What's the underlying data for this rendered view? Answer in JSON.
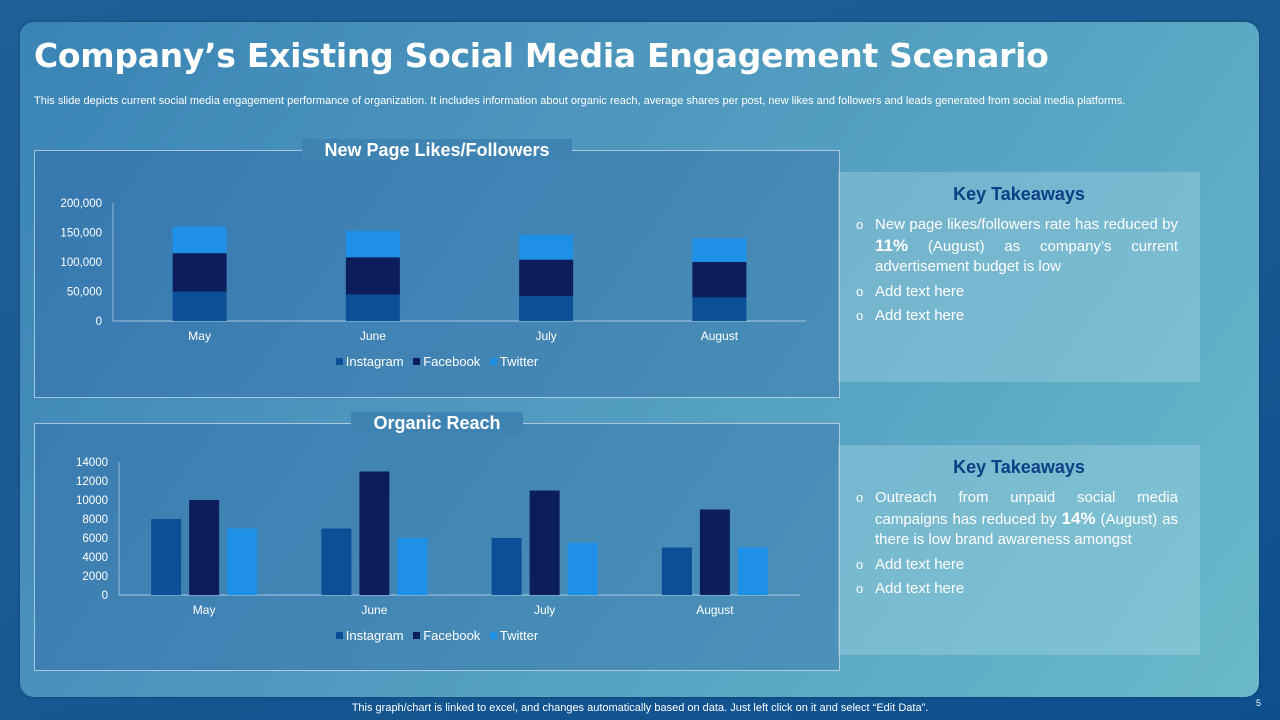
{
  "slide": {
    "title": "Company’s Existing Social Media Engagement Scenario",
    "subtitle": "This slide depicts current social media engagement performance of organization. It includes information about organic reach, average shares per post, new likes and followers and leads generated from social media platforms.",
    "footer_note": "This graph/chart is linked to excel, and changes automatically based on data. Just left click on it and select “Edit Data”.",
    "page_number": "5"
  },
  "colors": {
    "instagram": "#0b4f97",
    "facebook": "#0b1e5b",
    "twitter": "#1e90e8",
    "takeaway_title": "#0c3f84"
  },
  "chart_data": [
    {
      "type": "bar",
      "stacked": true,
      "title": "New Page Likes/Followers",
      "categories": [
        "May",
        "June",
        "July",
        "August"
      ],
      "series": [
        {
          "name": "Instagram",
          "values": [
            50000,
            45000,
            42000,
            40000
          ]
        },
        {
          "name": "Facebook",
          "values": [
            65000,
            63000,
            62000,
            60000
          ]
        },
        {
          "name": "Twitter",
          "values": [
            45000,
            45000,
            42000,
            40000
          ]
        }
      ],
      "ylim": [
        0,
        200000
      ],
      "yticks": [
        0,
        50000,
        100000,
        150000,
        200000
      ],
      "ytick_labels": [
        "0",
        "50,000",
        "100,000",
        "150,000",
        "200,000"
      ],
      "xlabel": "",
      "ylabel": "",
      "legend": "bottom"
    },
    {
      "type": "bar",
      "stacked": false,
      "title": "Organic Reach",
      "categories": [
        "May",
        "June",
        "July",
        "August"
      ],
      "series": [
        {
          "name": "Instagram",
          "values": [
            8000,
            7000,
            6000,
            5000
          ]
        },
        {
          "name": "Facebook",
          "values": [
            10000,
            13000,
            11000,
            9000
          ]
        },
        {
          "name": "Twitter",
          "values": [
            7000,
            6000,
            5500,
            5000
          ]
        }
      ],
      "ylim": [
        0,
        14000
      ],
      "yticks": [
        0,
        2000,
        4000,
        6000,
        8000,
        10000,
        12000,
        14000
      ],
      "ytick_labels": [
        "0",
        "2000",
        "4000",
        "6000",
        "8000",
        "10000",
        "12000",
        "14000"
      ],
      "xlabel": "",
      "ylabel": "",
      "legend": "bottom"
    }
  ],
  "takeaways": [
    {
      "title": "Key Takeaways",
      "main_pre": "New page likes/followers rate has reduced by",
      "main_pct": "11%",
      "main_post": "(August) as company’s current advertisement budget is low",
      "extra": [
        "Add text here",
        "Add text here"
      ]
    },
    {
      "title": "Key Takeaways",
      "main_pre": "Outreach from unpaid social media campaigns has reduced by",
      "main_pct": "14%",
      "main_post": "(August) as there is low brand awareness amongst",
      "extra": [
        "Add text here",
        "Add text here"
      ]
    }
  ],
  "bullet_glyph": "o"
}
